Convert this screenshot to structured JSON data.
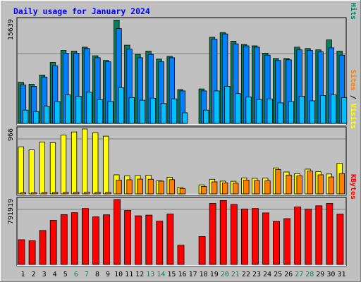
{
  "chart_data": {
    "type": "bar",
    "title": "Daily usage for January 2024",
    "days": [
      "1",
      "2",
      "3",
      "4",
      "5",
      "6",
      "7",
      "8",
      "9",
      "10",
      "11",
      "12",
      "13",
      "14",
      "15",
      "16",
      "17",
      "18",
      "19",
      "20",
      "21",
      "22",
      "23",
      "24",
      "25",
      "26",
      "27",
      "28",
      "29",
      "30",
      "31"
    ],
    "weekend_days": [
      "6",
      "7",
      "13",
      "14",
      "20",
      "21",
      "27",
      "28"
    ],
    "panels": [
      {
        "name": "hits-files-pages",
        "max_label": "15639",
        "ymax": 15639,
        "axis_labels": [
          {
            "text": "Pages",
            "color": "#00c0ff"
          },
          {
            "text": " / ",
            "color": "#000000"
          },
          {
            "text": "Files",
            "color": "#0080ff"
          },
          {
            "text": " / ",
            "color": "#000000"
          },
          {
            "text": "Hits",
            "color": "#00805c"
          }
        ],
        "series": [
          {
            "name": "Hits",
            "color": "#00805c",
            "values": [
              6200,
              5900,
              7300,
              9200,
              11000,
              10900,
              11500,
              10200,
              9500,
              15600,
              11800,
              10400,
              10900,
              9700,
              10100,
              5100,
              0,
              5200,
              13000,
              13700,
              12400,
              11900,
              11700,
              10600,
              9800,
              9800,
              11500,
              11300,
              11100,
              12600,
              10900
            ]
          },
          {
            "name": "Files",
            "color": "#0080ff",
            "values": [
              5800,
              5600,
              7000,
              8700,
              10600,
              10600,
              11300,
              9900,
              9300,
              14300,
              11200,
              9900,
              10400,
              9300,
              9900,
              4900,
              0,
              4900,
              12700,
              13500,
              12000,
              11700,
              11500,
              10300,
              9500,
              9600,
              11100,
              11000,
              10800,
              11400,
              10300
            ]
          },
          {
            "name": "Pages",
            "color": "#00c0ff",
            "values": [
              2000,
              1800,
              2600,
              3300,
              4300,
              4100,
              4700,
              3600,
              3300,
              5400,
              3900,
              3500,
              3800,
              3000,
              3700,
              1600,
              0,
              2000,
              4900,
              5600,
              4500,
              4000,
              3600,
              3700,
              3100,
              3300,
              4100,
              3400,
              4200,
              4300,
              3900
            ]
          }
        ]
      },
      {
        "name": "visits-sites",
        "max_label": "966",
        "ymax": 966,
        "axis_labels": [
          {
            "text": "Sites",
            "color": "#ff8000"
          },
          {
            "text": " / ",
            "color": "#000000"
          },
          {
            "text": "Visits",
            "color": "#ffff00"
          }
        ],
        "series": [
          {
            "name": "Visits",
            "color": "#ffff00",
            "values": [
              700,
              655,
              772,
              763,
              878,
              922,
              966,
              911,
              860,
              283,
              268,
              273,
              278,
              194,
              248,
              97,
              0,
              134,
              217,
              190,
              188,
              238,
              232,
              234,
              386,
              326,
              301,
              369,
              330,
              296,
              456
            ]
          },
          {
            "name": "Sites",
            "color": "#ff8000",
            "values": [
              18,
              17,
              20,
              21,
              22,
              24,
              25,
              23,
              22,
              205,
              210,
              220,
              218,
              190,
              212,
              80,
              0,
              110,
              178,
              165,
              160,
              206,
              198,
              196,
              362,
              280,
              270,
              341,
              283,
              252,
              302
            ]
          }
        ]
      },
      {
        "name": "kbytes",
        "max_label": "791919",
        "ymax": 791919,
        "axis_labels": [
          {
            "text": "KBytes",
            "color": "#ff0000"
          }
        ],
        "series": [
          {
            "name": "KBytes",
            "color": "#ff0000",
            "values": [
              301000,
              288000,
              414000,
              538000,
              608000,
              631000,
              683000,
              580000,
              605000,
              791919,
              658000,
              593000,
              602000,
              528000,
              615000,
              234000,
              0,
              339000,
              745000,
              780000,
              732000,
              677000,
              683000,
              628000,
              525000,
              559000,
              701000,
              674000,
              715000,
              745000,
              613000
            ]
          }
        ]
      }
    ]
  }
}
